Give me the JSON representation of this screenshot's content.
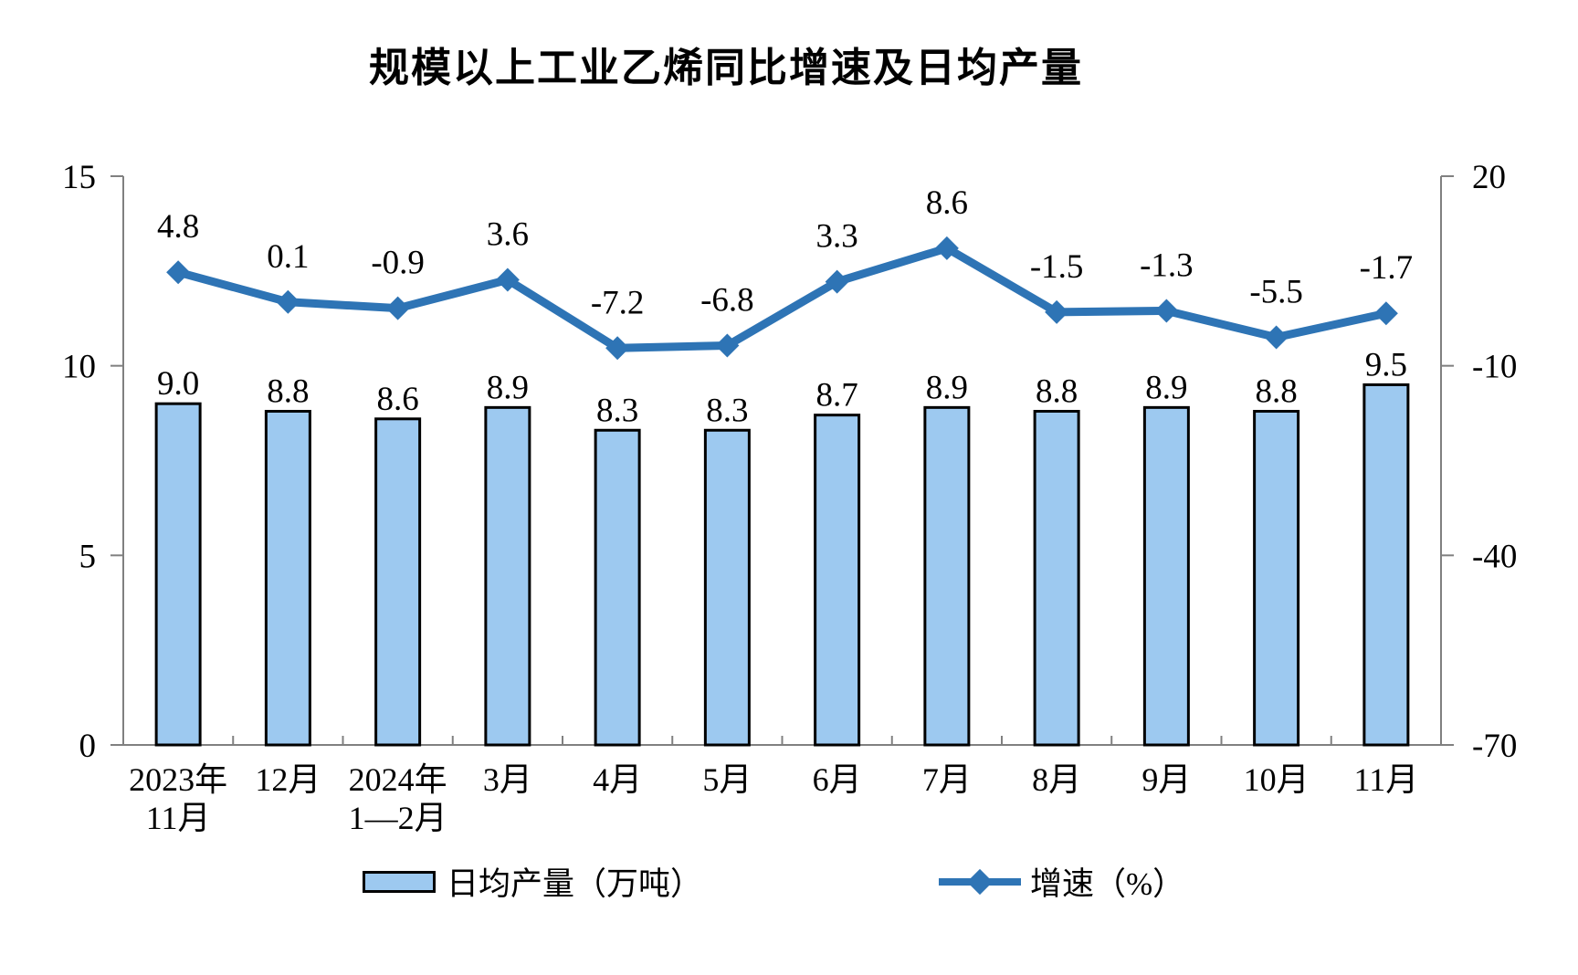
{
  "title": "规模以上工业乙烯同比增速及日均产量",
  "chart_data": {
    "type": "combo-bar-line",
    "title": "规模以上工业乙烯同比增速及日均产量",
    "categories": [
      [
        "2023年",
        "11月"
      ],
      [
        "12月"
      ],
      [
        "2024年",
        "1—2月"
      ],
      [
        "3月"
      ],
      [
        "4月"
      ],
      [
        "5月"
      ],
      [
        "6月"
      ],
      [
        "7月"
      ],
      [
        "8月"
      ],
      [
        "9月"
      ],
      [
        "10月"
      ],
      [
        "11月"
      ]
    ],
    "series": [
      {
        "name": "日均产量（万吨）",
        "type": "bar",
        "axis": "left",
        "values": [
          9.0,
          8.8,
          8.6,
          8.9,
          8.3,
          8.3,
          8.7,
          8.9,
          8.8,
          8.9,
          8.8,
          9.5
        ],
        "labels": [
          "9.0",
          "8.8",
          "8.6",
          "8.9",
          "8.3",
          "8.3",
          "8.7",
          "8.9",
          "8.8",
          "8.9",
          "8.8",
          "9.5"
        ],
        "color": "#9DC9F0",
        "border_color": "#000000"
      },
      {
        "name": "增速（%）",
        "type": "line",
        "axis": "right",
        "marker": "diamond",
        "values": [
          4.8,
          0.1,
          -0.9,
          3.6,
          -7.2,
          -6.8,
          3.3,
          8.6,
          -1.5,
          -1.3,
          -5.5,
          -1.7
        ],
        "labels": [
          "4.8",
          "0.1",
          "-0.9",
          "3.6",
          "-7.2",
          "-6.8",
          "3.3",
          "8.6",
          "-1.5",
          "-1.3",
          "-5.5",
          "-1.7"
        ],
        "color": "#2E74B5"
      }
    ],
    "left_axis": {
      "min": 0,
      "max": 15,
      "ticks": [
        0,
        5,
        10,
        15
      ],
      "tick_labels": [
        "0",
        "5",
        "10",
        "15"
      ]
    },
    "right_axis": {
      "min": -70,
      "max": 20,
      "ticks": [
        -70,
        -40,
        -10,
        20
      ],
      "tick_labels": [
        "-70",
        "-40",
        "-10",
        "20"
      ]
    },
    "grid": false,
    "legend_position": "bottom",
    "axis_color": "#808080"
  }
}
